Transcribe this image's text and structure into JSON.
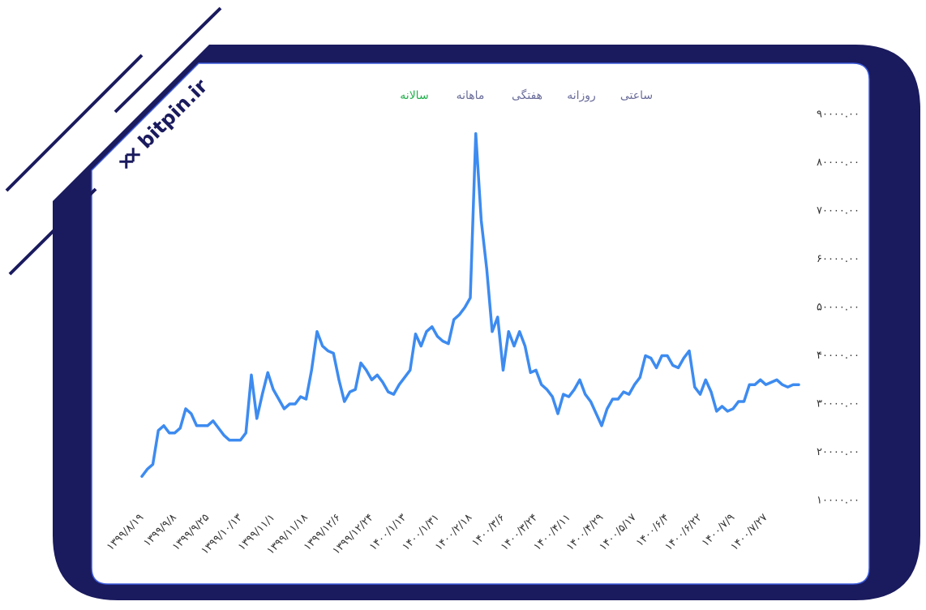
{
  "brand": "bitpin.ir",
  "tabs": [
    "ساعتی",
    "روزانه",
    "هفتگی",
    "ماهانه",
    "سالانه"
  ],
  "active_tab": 4,
  "chart_data": {
    "type": "line",
    "categories": [
      "۱۳۹۹/۸/۱۹",
      null,
      null,
      null,
      null,
      null,
      "۱۳۹۹/۹/۸",
      null,
      null,
      null,
      null,
      null,
      "۱۳۹۹/۹/۲۵",
      null,
      null,
      null,
      null,
      null,
      "۱۳۹۹/۱۰/۱۳",
      null,
      null,
      null,
      null,
      null,
      "۱۳۹۹/۱۱/۱",
      null,
      null,
      null,
      null,
      null,
      "۱۳۹۹/۱۱/۱۸",
      null,
      null,
      null,
      null,
      null,
      "۱۳۹۹/۱۲/۶",
      null,
      null,
      null,
      null,
      null,
      "۱۳۹۹/۱۲/۲۴",
      null,
      null,
      null,
      null,
      null,
      "۱۴۰۰/۱/۱۳",
      null,
      null,
      null,
      null,
      null,
      "۱۴۰۰/۱/۳۱",
      null,
      null,
      null,
      null,
      null,
      "۱۴۰۰/۲/۱۸",
      null,
      null,
      null,
      null,
      null,
      "۱۴۰۰/۳/۶",
      null,
      null,
      null,
      null,
      null,
      "۱۴۰۰/۳/۲۴",
      null,
      null,
      null,
      null,
      null,
      "۱۴۰۰/۴/۱۱",
      null,
      null,
      null,
      null,
      null,
      "۱۴۰۰/۴/۲۹",
      null,
      null,
      null,
      null,
      null,
      "۱۴۰۰/۵/۱۷",
      null,
      null,
      null,
      null,
      null,
      "۱۴۰۰/۶/۴",
      null,
      null,
      null,
      null,
      null,
      "۱۴۰۰/۶/۲۲",
      null,
      null,
      null,
      null,
      null,
      "۱۴۰۰/۷/۹",
      null,
      null,
      null,
      null,
      null,
      "۱۴۰۰/۷/۲۷",
      null,
      null,
      null,
      null,
      null,
      null
    ],
    "series": [
      {
        "color": "#3d8bf0",
        "values": [
          15000,
          16500,
          17500,
          24500,
          25500,
          24000,
          24000,
          25000,
          29000,
          28000,
          25500,
          25500,
          25500,
          26500,
          25000,
          23500,
          22500,
          22500,
          22500,
          24000,
          36000,
          27000,
          32000,
          36500,
          33000,
          31000,
          29000,
          30000,
          30000,
          31500,
          31000,
          37000,
          45000,
          42000,
          41000,
          40500,
          35000,
          30500,
          32500,
          33000,
          38500,
          37000,
          35000,
          36000,
          34500,
          32500,
          32000,
          34000,
          35500,
          37000,
          44500,
          42000,
          45000,
          46000,
          44000,
          43000,
          42500,
          47500,
          48500,
          50000,
          52000,
          86000,
          68000,
          58000,
          45000,
          48000,
          37000,
          45000,
          42000,
          45000,
          42000,
          36500,
          37000,
          34000,
          33000,
          31500,
          28000,
          32000,
          31500,
          33000,
          35000,
          32000,
          30500,
          28000,
          25500,
          29000,
          31000,
          31000,
          32500,
          32000,
          34000,
          35500,
          40000,
          39500,
          37500,
          40000,
          40000,
          38000,
          37500,
          39500,
          41000,
          33500,
          32000,
          35000,
          32500,
          28500,
          29500,
          28500,
          29000,
          30500,
          30500,
          34000,
          34000,
          35000,
          34000,
          34500,
          35000,
          34000,
          33500,
          34000,
          34000
        ]
      }
    ],
    "ylim": [
      10000,
      90000
    ],
    "yticks": [
      {
        "value": 10000,
        "label": "۱۰۰۰۰.۰۰"
      },
      {
        "value": 20000,
        "label": "۲۰۰۰۰.۰۰"
      },
      {
        "value": 30000,
        "label": "۳۰۰۰۰.۰۰"
      },
      {
        "value": 40000,
        "label": "۴۰۰۰۰.۰۰"
      },
      {
        "value": 50000,
        "label": "۵۰۰۰۰.۰۰"
      },
      {
        "value": 60000,
        "label": "۶۰۰۰۰.۰۰"
      },
      {
        "value": 70000,
        "label": "۷۰۰۰۰.۰۰"
      },
      {
        "value": 80000,
        "label": "۸۰۰۰۰.۰۰"
      },
      {
        "value": 90000,
        "label": "۹۰۰۰۰.۰۰"
      }
    ],
    "grid": false
  }
}
